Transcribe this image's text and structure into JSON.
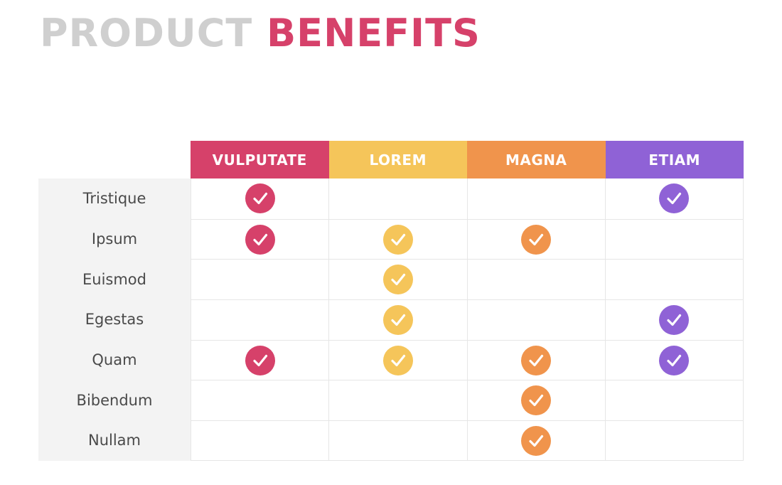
{
  "title": {
    "part1": "PRODUCT",
    "part2": "BENEFITS"
  },
  "columns": [
    {
      "label": "VULPUTATE",
      "color": "#d6416a"
    },
    {
      "label": "LOREM",
      "color": "#f5c55a"
    },
    {
      "label": "MAGNA",
      "color": "#f0944c"
    },
    {
      "label": "ETIAM",
      "color": "#8f62d6"
    }
  ],
  "rows": [
    {
      "label": "Tristique",
      "checks": [
        true,
        false,
        false,
        true
      ]
    },
    {
      "label": "Ipsum",
      "checks": [
        true,
        true,
        true,
        false
      ]
    },
    {
      "label": "Euismod",
      "checks": [
        false,
        true,
        false,
        false
      ]
    },
    {
      "label": "Egestas",
      "checks": [
        false,
        true,
        false,
        true
      ]
    },
    {
      "label": "Quam",
      "checks": [
        true,
        true,
        true,
        true
      ]
    },
    {
      "label": "Bibendum",
      "checks": [
        false,
        false,
        true,
        false
      ]
    },
    {
      "label": "Nullam",
      "checks": [
        false,
        false,
        true,
        false
      ]
    }
  ],
  "icon": "check-circle-icon"
}
